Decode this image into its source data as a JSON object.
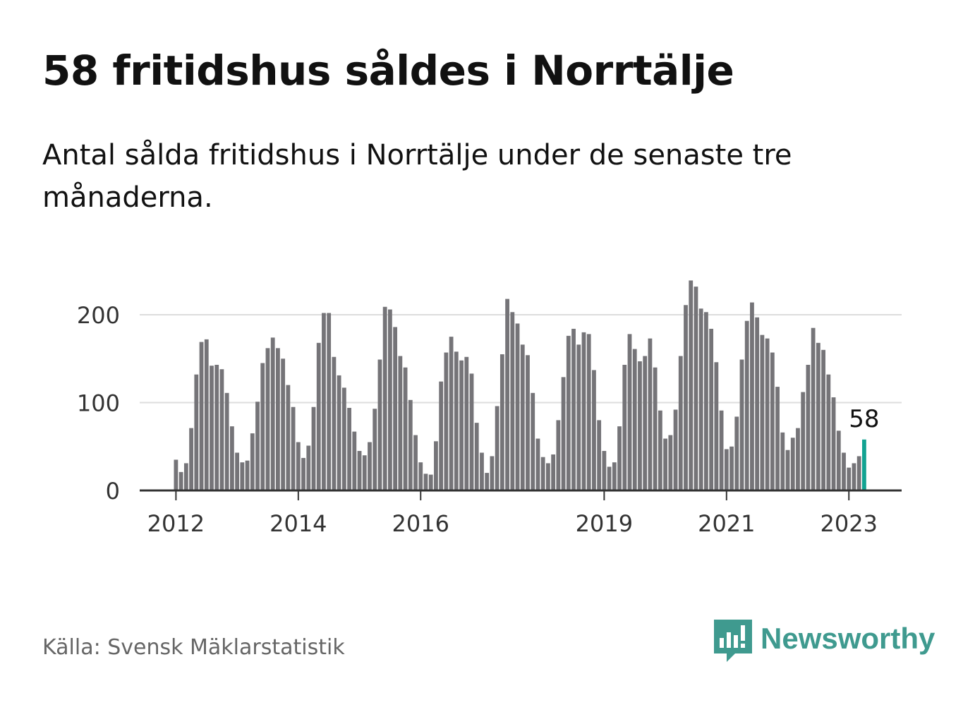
{
  "header": {
    "title": "58 fritidshus såldes i Norrtälje",
    "subtitle": "Antal sålda fritidshus i Norrtälje under de senaste tre månaderna."
  },
  "footer": {
    "source": "Källa: Svensk Mäklarstatistik",
    "brand": "Newsworthy"
  },
  "colors": {
    "bar": "#757478",
    "highlight": "#12a392",
    "grid": "#dddddd",
    "axis": "#333333",
    "brand": "#3f9a8f"
  },
  "chart_data": {
    "type": "bar",
    "title": "58 fritidshus såldes i Norrtälje",
    "subtitle": "Antal sålda fritidshus i Norrtälje under de senaste tre månaderna.",
    "xlabel": "",
    "ylabel": "",
    "ylim": [
      0,
      250
    ],
    "y_ticks": [
      0,
      100,
      200
    ],
    "grid": true,
    "start": {
      "year": 2012,
      "month": 1
    },
    "x_ticks": [
      "2012",
      "2014",
      "2016",
      "2019",
      "2021",
      "2023"
    ],
    "highlight": {
      "label": "58",
      "value": 58,
      "index": 135
    },
    "values": [
      35,
      21,
      31,
      71,
      132,
      169,
      172,
      142,
      143,
      138,
      111,
      73,
      43,
      32,
      34,
      65,
      101,
      145,
      162,
      174,
      162,
      150,
      120,
      95,
      55,
      37,
      51,
      95,
      168,
      202,
      202,
      152,
      131,
      117,
      94,
      67,
      45,
      40,
      55,
      93,
      149,
      209,
      206,
      186,
      153,
      140,
      103,
      63,
      32,
      19,
      18,
      56,
      124,
      157,
      175,
      158,
      148,
      152,
      133,
      77,
      43,
      20,
      39,
      96,
      155,
      218,
      203,
      190,
      166,
      154,
      111,
      59,
      38,
      31,
      41,
      80,
      129,
      176,
      184,
      166,
      180,
      178,
      137,
      80,
      45,
      27,
      32,
      73,
      143,
      178,
      161,
      147,
      153,
      173,
      140,
      91,
      59,
      63,
      92,
      153,
      211,
      239,
      232,
      207,
      203,
      184,
      146,
      91,
      47,
      50,
      84,
      149,
      193,
      214,
      197,
      177,
      173,
      157,
      118,
      66,
      46,
      60,
      71,
      112,
      143,
      185,
      168,
      160,
      132,
      106,
      68,
      43,
      26,
      31,
      39,
      58
    ]
  }
}
